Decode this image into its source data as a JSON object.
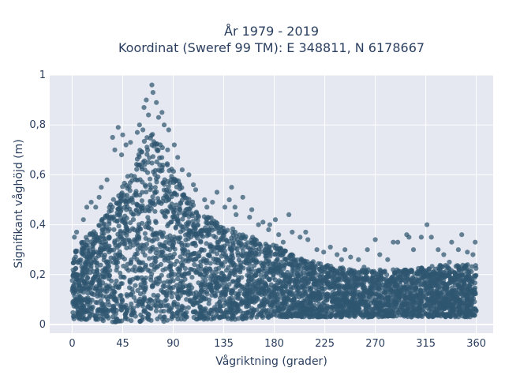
{
  "chart_data": {
    "type": "scatter",
    "title_line1": "År 1979 - 2019",
    "title_line2": "Koordinat (Sweref 99 TM): E 348811, N 6178667",
    "xlabel": "Vågriktning (grader)",
    "ylabel": "Signifikant våghöjd (m)",
    "xlim": [
      -20,
      375
    ],
    "ylim": [
      -0.035,
      1.0
    ],
    "x_ticks": [
      0,
      45,
      90,
      135,
      180,
      225,
      270,
      315,
      360
    ],
    "x_tick_labels": [
      "0",
      "45",
      "90",
      "135",
      "180",
      "225",
      "270",
      "315",
      "360"
    ],
    "y_ticks": [
      0,
      0.2,
      0.4,
      0.6,
      0.8,
      1
    ],
    "y_tick_labels": [
      "0",
      "0,2",
      "0,4",
      "0,6",
      "0,8",
      "1"
    ],
    "grid": true,
    "marker_color": "#2f5670",
    "plot_bg": "#e5e8f1",
    "envelope": {
      "x": [
        0,
        20,
        35,
        50,
        60,
        70,
        80,
        90,
        100,
        115,
        135,
        155,
        180,
        200,
        225,
        250,
        270,
        300,
        330,
        360
      ],
      "upper": [
        0.3,
        0.38,
        0.5,
        0.6,
        0.7,
        0.78,
        0.72,
        0.62,
        0.53,
        0.45,
        0.4,
        0.36,
        0.32,
        0.27,
        0.24,
        0.22,
        0.22,
        0.22,
        0.24,
        0.24
      ],
      "lower": [
        0.02,
        0.02,
        0.01,
        0.01,
        0.01,
        0.01,
        0.01,
        0.02,
        0.02,
        0.02,
        0.02,
        0.02,
        0.03,
        0.03,
        0.03,
        0.03,
        0.03,
        0.03,
        0.03,
        0.03
      ]
    },
    "outliers": [
      [
        71,
        0.96
      ],
      [
        72,
        0.93
      ],
      [
        66,
        0.9
      ],
      [
        75,
        0.89
      ],
      [
        64,
        0.87
      ],
      [
        80,
        0.85
      ],
      [
        68,
        0.84
      ],
      [
        77,
        0.83
      ],
      [
        82,
        0.8
      ],
      [
        60,
        0.8
      ],
      [
        58,
        0.77
      ],
      [
        63,
        0.78
      ],
      [
        86,
        0.78
      ],
      [
        41,
        0.79
      ],
      [
        45,
        0.76
      ],
      [
        36,
        0.75
      ],
      [
        52,
        0.73
      ],
      [
        91,
        0.72
      ],
      [
        38,
        0.7
      ],
      [
        94,
        0.67
      ],
      [
        98,
        0.62
      ],
      [
        104,
        0.6
      ],
      [
        108,
        0.56
      ],
      [
        31,
        0.58
      ],
      [
        26,
        0.55
      ],
      [
        110,
        0.54
      ],
      [
        118,
        0.5
      ],
      [
        125,
        0.49
      ],
      [
        129,
        0.53
      ],
      [
        136,
        0.47
      ],
      [
        145,
        0.47
      ],
      [
        152,
        0.51
      ],
      [
        160,
        0.46
      ],
      [
        146,
        0.44
      ],
      [
        158,
        0.43
      ],
      [
        166,
        0.4
      ],
      [
        170,
        0.41
      ],
      [
        175,
        0.38
      ],
      [
        184,
        0.36
      ],
      [
        193,
        0.44
      ],
      [
        196,
        0.37
      ],
      [
        203,
        0.35
      ],
      [
        210,
        0.34
      ],
      [
        218,
        0.3
      ],
      [
        224,
        0.29
      ],
      [
        230,
        0.31
      ],
      [
        236,
        0.28
      ],
      [
        243,
        0.3
      ],
      [
        248,
        0.27
      ],
      [
        255,
        0.26
      ],
      [
        263,
        0.3
      ],
      [
        270,
        0.34
      ],
      [
        274,
        0.28
      ],
      [
        281,
        0.26
      ],
      [
        286,
        0.33
      ],
      [
        290,
        0.33
      ],
      [
        298,
        0.36
      ],
      [
        304,
        0.3
      ],
      [
        311,
        0.35
      ],
      [
        316,
        0.4
      ],
      [
        320,
        0.35
      ],
      [
        326,
        0.3
      ],
      [
        331,
        0.28
      ],
      [
        338,
        0.33
      ],
      [
        344,
        0.3
      ],
      [
        347,
        0.36
      ],
      [
        352,
        0.29
      ],
      [
        357,
        0.28
      ],
      [
        359,
        0.33
      ],
      [
        10,
        0.42
      ],
      [
        13,
        0.47
      ],
      [
        17,
        0.49
      ],
      [
        4,
        0.37
      ],
      [
        2,
        0.35
      ],
      [
        21,
        0.47
      ],
      [
        24,
        0.51
      ],
      [
        181,
        0.42
      ],
      [
        188,
        0.33
      ],
      [
        140,
        0.5
      ],
      [
        142,
        0.55
      ],
      [
        120,
        0.47
      ],
      [
        176,
        0.4
      ],
      [
        208,
        0.37
      ],
      [
        260,
        0.23
      ],
      [
        240,
        0.26
      ],
      [
        300,
        0.35
      ],
      [
        336,
        0.25
      ],
      [
        60,
        0.64
      ],
      [
        85,
        0.7
      ],
      [
        48,
        0.72
      ],
      [
        44,
        0.68
      ]
    ]
  }
}
